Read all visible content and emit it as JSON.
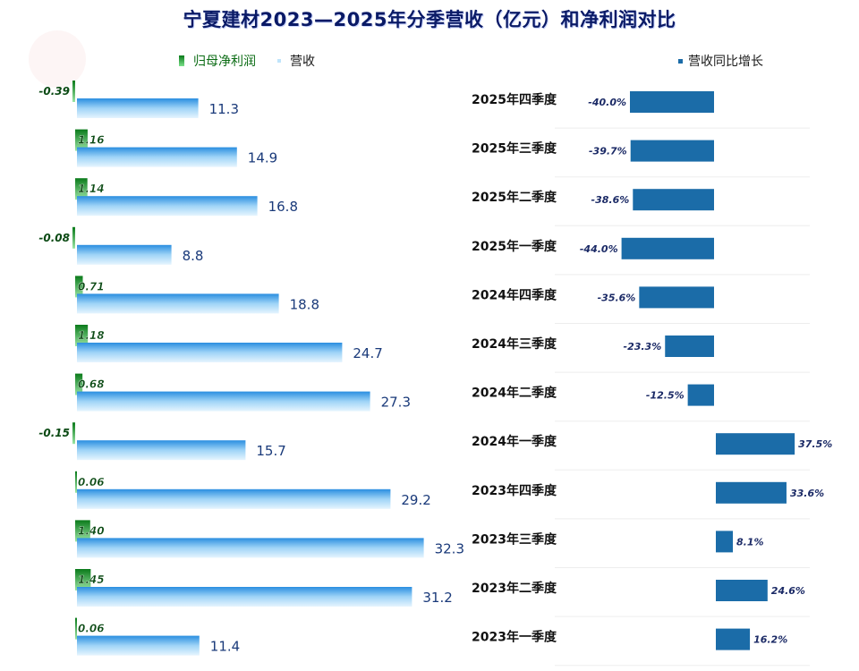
{
  "title": "宁夏建材2023—2025年分季营收（亿元）和净利润对比",
  "legend": {
    "net_profit": "归母净利润",
    "revenue": "营收",
    "growth": "营收同比增长"
  },
  "colors": {
    "net_profit": "#2e9e3e",
    "revenue": "#5cb4ef",
    "growth": "#1b6ca8"
  },
  "chart_data": {
    "type": "bar",
    "orientation": "horizontal",
    "categories": [
      "2025年四季度",
      "2025年三季度",
      "2025年二季度",
      "2025年一季度",
      "2024年四季度",
      "2024年三季度",
      "2024年二季度",
      "2024年一季度",
      "2023年四季度",
      "2023年三季度",
      "2023年二季度",
      "2023年一季度"
    ],
    "series": [
      {
        "name": "归母净利润",
        "values": [
          -0.39,
          1.16,
          1.14,
          -0.08,
          0.71,
          1.18,
          0.68,
          -0.15,
          0.06,
          1.4,
          1.45,
          0.06
        ],
        "labels": [
          "-0.39",
          "1.16",
          "1.14",
          "-0.08",
          "0.71",
          "1.18",
          "0.68",
          "-0.15",
          "0.06",
          "1.40",
          "1.45",
          "0.06"
        ]
      },
      {
        "name": "营收",
        "values": [
          11.3,
          14.9,
          16.8,
          8.8,
          18.8,
          24.7,
          27.3,
          15.7,
          29.2,
          32.3,
          31.2,
          11.4
        ],
        "labels": [
          "11.3",
          "14.9",
          "16.8",
          "8.8",
          "18.8",
          "24.7",
          "27.3",
          "15.7",
          "29.2",
          "32.3",
          "31.2",
          "11.4"
        ]
      },
      {
        "name": "营收同比增长",
        "values": [
          -40.0,
          -39.7,
          -38.6,
          -44.0,
          -35.6,
          -23.3,
          -12.5,
          37.5,
          33.6,
          8.1,
          24.6,
          16.2
        ],
        "labels": [
          "-40.0%",
          "-39.7%",
          "-38.6%",
          "-44.0%",
          "-35.6%",
          "-23.3%",
          "-12.5%",
          "37.5%",
          "33.6%",
          "8.1%",
          "24.6%",
          "16.2%"
        ]
      }
    ],
    "grid": false,
    "legend_position": "top"
  }
}
